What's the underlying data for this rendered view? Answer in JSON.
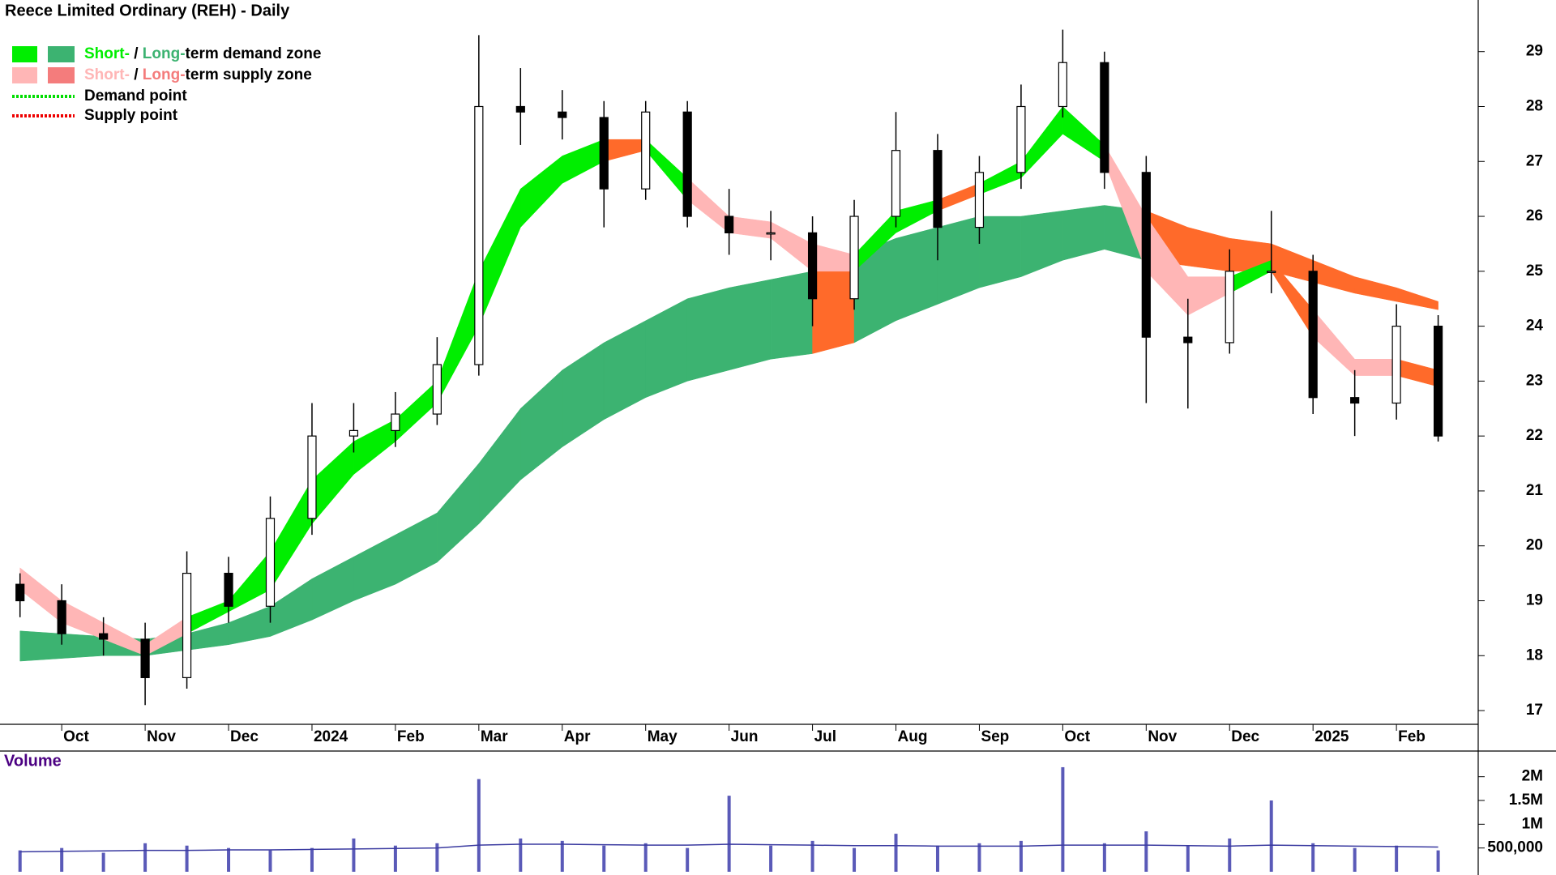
{
  "chart_data": {
    "type": "candlestick",
    "title": "Reece Limited Ordinary (REH) - Daily",
    "x": [
      -0.5,
      0,
      0.5,
      1,
      1.5,
      2,
      2.5,
      3,
      3.5,
      4,
      4.5,
      5,
      5.5,
      6,
      6.5,
      7,
      7.5,
      8,
      8.5,
      9,
      9.5,
      10,
      10.5,
      11,
      11.5,
      12,
      12.5,
      13,
      13.5,
      14,
      14.5,
      15,
      15.5,
      16,
      16.5
    ],
    "open": [
      19.3,
      19.0,
      18.4,
      18.3,
      17.6,
      19.5,
      18.9,
      20.5,
      22.0,
      22.1,
      22.4,
      23.3,
      28.0,
      27.9,
      27.8,
      26.5,
      27.9,
      26.0,
      25.7,
      25.7,
      24.5,
      26.0,
      27.2,
      25.8,
      26.8,
      28.0,
      28.8,
      26.8,
      23.8,
      23.7,
      25.0,
      25.0,
      22.7,
      22.6,
      24.0
    ],
    "high": [
      19.5,
      19.3,
      18.7,
      18.6,
      19.9,
      19.8,
      20.9,
      22.6,
      22.6,
      22.8,
      23.8,
      29.3,
      28.7,
      28.3,
      28.1,
      28.1,
      28.1,
      26.5,
      26.1,
      26.0,
      26.3,
      27.9,
      27.5,
      27.1,
      28.4,
      29.4,
      29.0,
      27.1,
      24.5,
      25.4,
      26.1,
      25.3,
      23.2,
      24.4,
      24.2
    ],
    "low": [
      18.7,
      18.2,
      18.0,
      17.1,
      17.4,
      18.6,
      18.6,
      20.2,
      21.7,
      21.8,
      22.2,
      23.1,
      27.3,
      27.4,
      25.8,
      26.3,
      25.8,
      25.3,
      25.2,
      24.0,
      24.3,
      25.8,
      25.2,
      25.5,
      26.5,
      27.8,
      26.5,
      22.6,
      22.5,
      23.5,
      24.6,
      22.4,
      22.0,
      22.3,
      21.9
    ],
    "close": [
      19.0,
      18.4,
      18.3,
      17.6,
      19.5,
      18.9,
      20.5,
      22.0,
      22.1,
      22.4,
      23.3,
      28.0,
      27.9,
      27.8,
      26.5,
      27.9,
      26.0,
      25.7,
      25.7,
      24.5,
      26.0,
      27.2,
      25.8,
      26.8,
      28.0,
      28.8,
      26.8,
      23.8,
      23.7,
      25.0,
      25.0,
      22.7,
      22.6,
      24.0,
      22.0
    ],
    "up_color": "#ffffff",
    "down_color": "#000000",
    "xlim": [
      -0.74,
      16.98
    ],
    "ylim": [
      16.75,
      29.94
    ],
    "yticks": [
      17,
      18,
      19,
      20,
      21,
      22,
      23,
      24,
      25,
      26,
      27,
      28,
      29
    ],
    "xticks": [
      {
        "value": 0,
        "label": "Oct"
      },
      {
        "value": 1,
        "label": "Nov"
      },
      {
        "value": 2,
        "label": "Dec"
      },
      {
        "value": 3,
        "label": "2024"
      },
      {
        "value": 4,
        "label": "Feb"
      },
      {
        "value": 5,
        "label": "Mar"
      },
      {
        "value": 6,
        "label": "Apr"
      },
      {
        "value": 7,
        "label": "May"
      },
      {
        "value": 8,
        "label": "Jun"
      },
      {
        "value": 9,
        "label": "Jul"
      },
      {
        "value": 10,
        "label": "Aug"
      },
      {
        "value": 11,
        "label": "Sep"
      },
      {
        "value": 12,
        "label": "Oct"
      },
      {
        "value": 13,
        "label": "Nov"
      },
      {
        "value": 14,
        "label": "Dec"
      },
      {
        "value": 15,
        "label": "2025"
      },
      {
        "value": 16,
        "label": "Feb"
      }
    ],
    "long_band": {
      "upper": [
        18.45,
        18.4,
        18.35,
        18.3,
        18.4,
        18.6,
        18.9,
        19.4,
        19.8,
        20.2,
        20.6,
        21.5,
        22.5,
        23.2,
        23.7,
        24.1,
        24.5,
        24.7,
        24.85,
        25.0,
        25.3,
        25.6,
        25.8,
        26.0,
        26.0,
        26.1,
        26.2,
        26.1,
        25.8,
        25.6,
        25.5,
        25.2,
        24.9,
        24.7,
        24.45
      ],
      "lower": [
        17.9,
        17.95,
        18.0,
        18.0,
        18.1,
        18.2,
        18.35,
        18.65,
        19.0,
        19.3,
        19.7,
        20.4,
        21.2,
        21.8,
        22.3,
        22.7,
        23.0,
        23.2,
        23.4,
        23.5,
        23.7,
        24.1,
        24.4,
        24.7,
        24.9,
        25.2,
        25.4,
        25.2,
        25.1,
        25.0,
        25.0,
        24.8,
        24.6,
        24.45,
        24.3
      ],
      "segment_colors": [
        "#3cb371",
        "#3cb371",
        "#3cb371",
        "#3cb371",
        "#3cb371",
        "#3cb371",
        "#3cb371",
        "#3cb371",
        "#3cb371",
        "#3cb371",
        "#3cb371",
        "#3cb371",
        "#3cb371",
        "#3cb371",
        "#3cb371",
        "#3cb371",
        "#3cb371",
        "#3cb371",
        "#3cb371",
        "#ff6a2a",
        "#3cb371",
        "#3cb371",
        "#3cb371",
        "#3cb371",
        "#3cb371",
        "#3cb371",
        "#3cb371",
        "#ff6a2a",
        "#ff6a2a",
        "#ff6a2a",
        "#ff6a2a",
        "#ff6a2a",
        "#ff6a2a",
        "#ff6a2a"
      ]
    },
    "short_band": {
      "upper": [
        19.6,
        19.0,
        18.6,
        18.2,
        18.7,
        19.0,
        19.9,
        21.2,
        21.9,
        22.3,
        23.0,
        25.0,
        26.5,
        27.1,
        27.4,
        27.4,
        26.7,
        26.0,
        25.9,
        25.5,
        25.3,
        26.1,
        26.3,
        26.6,
        27.0,
        28.0,
        27.3,
        26.0,
        24.9,
        24.9,
        25.2,
        24.3,
        23.4,
        23.4,
        23.2
      ],
      "lower": [
        19.2,
        18.6,
        18.3,
        18.0,
        18.4,
        18.8,
        19.2,
        20.4,
        21.3,
        21.9,
        22.6,
        24.0,
        25.8,
        26.6,
        27.0,
        27.2,
        26.3,
        25.7,
        25.6,
        25.0,
        25.0,
        25.7,
        26.1,
        26.4,
        26.7,
        27.5,
        27.0,
        25.0,
        24.2,
        24.6,
        25.0,
        23.8,
        23.1,
        23.1,
        22.9
      ],
      "segment_colors": [
        "#ffb6b6",
        "#ffb6b6",
        "#ffb6b6",
        "#ffb6b6",
        "#00ee00",
        "#00ee00",
        "#00ee00",
        "#00ee00",
        "#00ee00",
        "#00ee00",
        "#00ee00",
        "#00ee00",
        "#00ee00",
        "#00ee00",
        "#ff6a2a",
        "#00ee00",
        "#ffb6b6",
        "#ffb6b6",
        "#ffb6b6",
        "#ffb6b6",
        "#00ee00",
        "#00ee00",
        "#ff6a2a",
        "#00ee00",
        "#00ee00",
        "#00ee00",
        "#ffb6b6",
        "#ffb6b6",
        "#ffb6b6",
        "#00ee00",
        "#ff6a2a",
        "#ffb6b6",
        "#ffb6b6",
        "#ff6a2a"
      ]
    },
    "legend": {
      "zones": [
        {
          "short": "Short-",
          "sep": " / ",
          "long": "Long-",
          "rest": "term demand zone",
          "short_color": "#00ee00",
          "long_color": "#3cb371"
        },
        {
          "short": "Short-",
          "sep": " / ",
          "long": "Long-",
          "rest": "term supply zone",
          "short_color": "#ffb6b6",
          "long_color": "#f47c7c"
        }
      ],
      "points": [
        {
          "label": "Demand point",
          "color": "#00dd00"
        },
        {
          "label": "Supply point",
          "color": "#ee0000"
        }
      ]
    },
    "volume": {
      "label": "Volume",
      "color": "#5a5ab8",
      "average_color": "#3a3aa0",
      "values": [
        450000,
        500000,
        400000,
        600000,
        550000,
        500000,
        450000,
        500000,
        700000,
        550000,
        600000,
        1950000,
        700000,
        650000,
        550000,
        600000,
        500000,
        1600000,
        550000,
        650000,
        500000,
        800000,
        550000,
        600000,
        650000,
        2200000,
        600000,
        850000,
        550000,
        700000,
        1500000,
        600000,
        500000,
        550000,
        450000
      ],
      "average": [
        420000,
        430000,
        440000,
        450000,
        450000,
        460000,
        460000,
        470000,
        480000,
        490000,
        500000,
        560000,
        580000,
        580000,
        570000,
        560000,
        560000,
        580000,
        570000,
        560000,
        550000,
        550000,
        540000,
        540000,
        540000,
        560000,
        560000,
        560000,
        550000,
        540000,
        560000,
        550000,
        540000,
        530000,
        520000
      ],
      "ylim": [
        0,
        2540000
      ],
      "yticks": [
        {
          "value": 500000,
          "label": "500,000"
        },
        {
          "value": 1000000,
          "label": "1M"
        },
        {
          "value": 1500000,
          "label": "1.5M"
        },
        {
          "value": 2000000,
          "label": "2M"
        }
      ]
    }
  }
}
